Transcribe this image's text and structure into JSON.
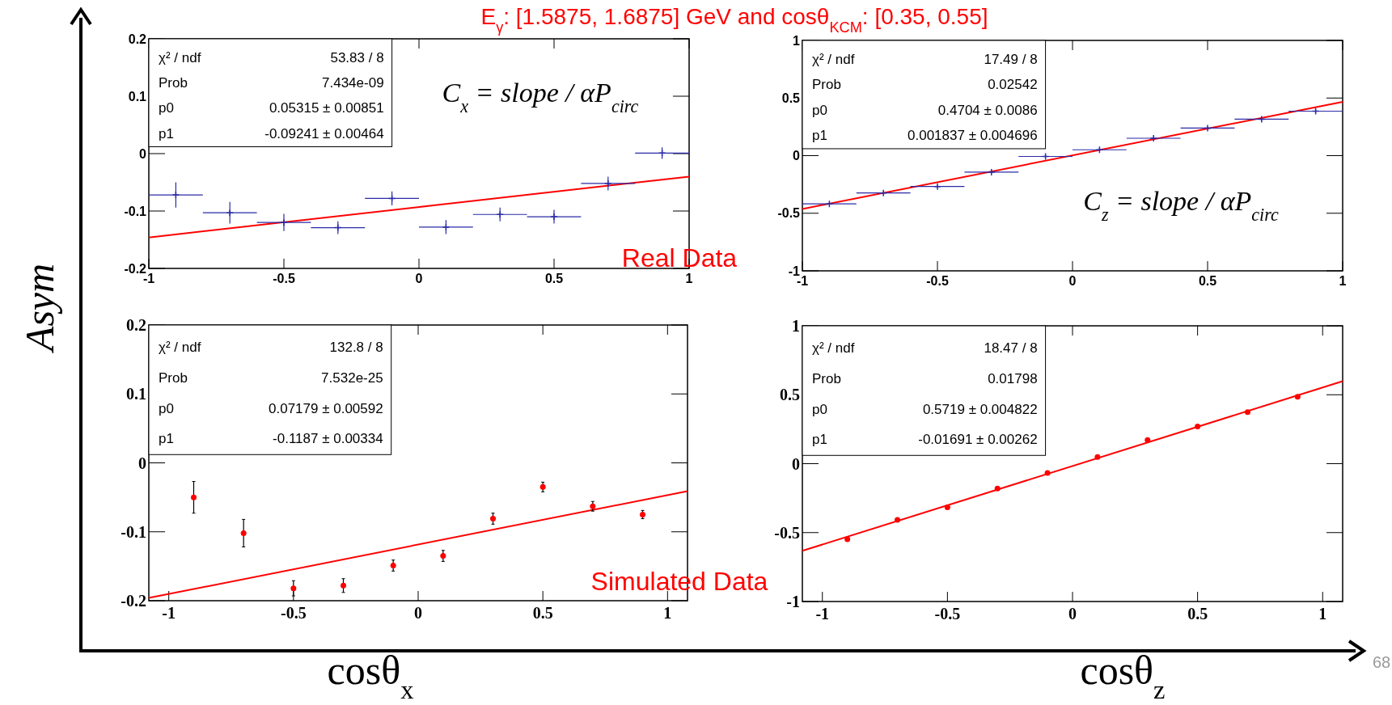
{
  "chart_data": [
    {
      "type": "scatter",
      "title": "E$_{γ}$: [1.5875, 1.6875] GeV and cosθ$_{KCM}$: [0.35, 0.55]",
      "ylabel": "Asym",
      "annotations": [
        "χ² / ndf",
        "53.83 / 8",
        "Prob",
        "7.434e-09",
        "p0",
        "0.05315 ± 0.00851",
        "p1",
        "-0.09241 ± 0.00464",
        "C$_{x}$ = slope / αP$_{circ}$",
        "Real Data"
      ],
      "xlim": [
        -1,
        1
      ],
      "ylim": [
        -0.2,
        0.2
      ],
      "xticks": [
        -1,
        -0.5,
        0,
        0.5,
        1
      ],
      "yticks": [
        -0.2,
        -0.1,
        0,
        0.1,
        0.2
      ],
      "series": [
        {
          "color": "#2b2ba6",
          "marker": "cross",
          "x": [
            -0.9,
            -0.7,
            -0.5,
            -0.3,
            -0.1,
            0.1,
            0.3,
            0.5,
            0.7,
            0.9
          ],
          "values": [
            -0.072,
            -0.103,
            -0.12,
            -0.129,
            -0.078,
            -0.128,
            -0.106,
            -0.11,
            -0.052,
            0.001
          ],
          "errors": [
            0.022,
            0.019,
            0.015,
            0.011,
            0.012,
            0.012,
            0.012,
            0.012,
            0.012,
            0.01
          ],
          "xerrors": [
            0.1,
            0.1,
            0.1,
            0.1,
            0.1,
            0.1,
            0.1,
            0.1,
            0.1,
            0.1
          ]
        },
        {
          "type": "line",
          "color": "#ff0000",
          "x": [
            -1,
            1
          ],
          "values": [
            -0.146,
            -0.04
          ]
        }
      ]
    },
    {
      "type": "scatter",
      "annotations": [
        "χ² / ndf",
        "17.49 / 8",
        "Prob",
        "0.02542",
        "p0",
        "0.4704 ± 0.0086",
        "p1",
        "0.001837 ± 0.004696",
        "C$_{z}$ = slope / αP$_{circ}$"
      ],
      "xlim": [
        -1,
        1
      ],
      "ylim": [
        -1,
        1
      ],
      "xticks": [
        -1,
        -0.5,
        0,
        0.5,
        1
      ],
      "yticks": [
        -1,
        -0.5,
        0,
        0.5,
        1
      ],
      "series": [
        {
          "color": "#2b2ba6",
          "marker": "cross",
          "x": [
            -0.9,
            -0.7,
            -0.5,
            -0.3,
            -0.1,
            0.1,
            0.3,
            0.5,
            0.7,
            0.9
          ],
          "values": [
            -0.419,
            -0.324,
            -0.268,
            -0.143,
            -0.007,
            0.051,
            0.151,
            0.239,
            0.316,
            0.386
          ],
          "errors": [
            0.01,
            0.01,
            0.01,
            0.01,
            0.01,
            0.01,
            0.01,
            0.01,
            0.01,
            0.02
          ],
          "xerrors": [
            0.1,
            0.1,
            0.1,
            0.1,
            0.1,
            0.1,
            0.1,
            0.1,
            0.1,
            0.1
          ]
        },
        {
          "type": "line",
          "color": "#ff0000",
          "x": [
            -1,
            1
          ],
          "values": [
            -0.463,
            0.467
          ]
        }
      ]
    },
    {
      "type": "scatter",
      "xlabel": "cosθ$_{x}$",
      "annotations": [
        "χ² / ndf",
        "132.8 / 8",
        "Prob",
        "7.532e-25",
        "p0",
        "0.07179 ± 0.00592",
        "p1",
        "-0.1187 ± 0.00334",
        "Simulated Data"
      ],
      "xlim": [
        -1.08,
        1.08
      ],
      "ylim": [
        -0.2,
        0.2
      ],
      "xticks": [
        -1,
        -0.5,
        0,
        0.5,
        1
      ],
      "yticks": [
        -0.2,
        -0.1,
        0,
        0.1,
        0.2
      ],
      "series": [
        {
          "color": "#ff0000",
          "marker": "circle",
          "x": [
            -0.9,
            -0.7,
            -0.5,
            -0.3,
            -0.1,
            0.1,
            0.3,
            0.5,
            0.7,
            0.9
          ],
          "values": [
            -0.05,
            -0.102,
            -0.182,
            -0.178,
            -0.149,
            -0.135,
            -0.081,
            -0.035,
            -0.063,
            -0.075
          ],
          "errors": [
            0.023,
            0.02,
            0.011,
            0.01,
            0.008,
            0.008,
            0.008,
            0.007,
            0.007,
            0.006
          ]
        },
        {
          "type": "line",
          "color": "#ff0000",
          "x": [
            -1.08,
            1.08
          ],
          "values": [
            -0.196,
            -0.041
          ]
        }
      ]
    },
    {
      "type": "scatter",
      "xlabel": "cosθ$_{z}$",
      "annotations": [
        "χ² / ndf",
        "18.47 / 8",
        "Prob",
        "0.01798",
        "p0",
        "0.5719 ± 0.004822",
        "p1",
        "-0.01691 ± 0.00262",
        "68"
      ],
      "xlim": [
        -1.08,
        1.08
      ],
      "ylim": [
        -1,
        1
      ],
      "xticks": [
        -1,
        -0.5,
        0,
        0.5,
        1
      ],
      "yticks": [
        -1,
        -0.5,
        0,
        0.5,
        1
      ],
      "series": [
        {
          "color": "#ff0000",
          "marker": "circle",
          "x": [
            -0.9,
            -0.7,
            -0.5,
            -0.3,
            -0.1,
            0.1,
            0.3,
            0.5,
            0.7,
            0.9
          ],
          "values": [
            -0.549,
            -0.408,
            -0.316,
            -0.181,
            -0.067,
            0.049,
            0.172,
            0.27,
            0.374,
            0.485
          ]
        },
        {
          "type": "line",
          "color": "#ff0000",
          "x": [
            -1.08,
            1.08
          ],
          "values": [
            -0.632,
            0.598
          ]
        }
      ]
    }
  ]
}
